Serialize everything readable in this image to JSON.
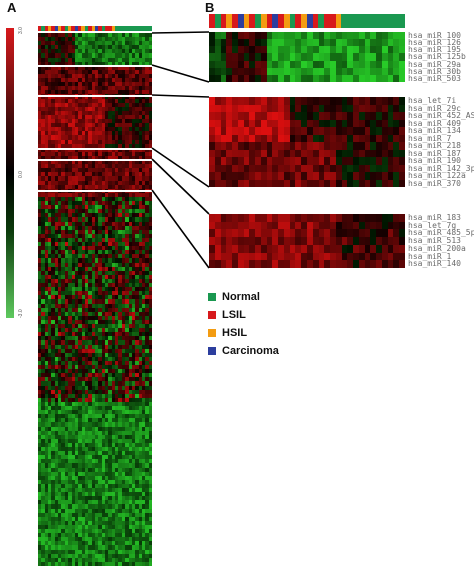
{
  "panels": {
    "a_label": "A",
    "b_label": "B"
  },
  "scale": {
    "top_label": "3.0",
    "mid_label": "0.0",
    "bottom_label": "-3.0"
  },
  "groups": {
    "group1": [
      "hsa_miR_100",
      "hsa_miR_126",
      "hsa_miR_195",
      "hsa_miR_125b",
      "hsa_miR_29a",
      "hsa_miR_30b",
      "hsa_miR_503"
    ],
    "group2": [
      "hsa_let_7i",
      "hsa_miR_29c",
      "hsa_miR_452_AS",
      "hsa_miR_409",
      "hsa_miR_134",
      "hsa_miR_7",
      "hsa_miR_218",
      "hsa_miR_187",
      "hsa_miR_190",
      "hsa_miR_142_3p",
      "hsa_miR_122a",
      "hsa_miR_370"
    ],
    "group3": [
      "hsa_miR_183",
      "hsa_let_7g",
      "hsa_miR_485_5p",
      "hsa_miR_513",
      "hsa_miR_200a",
      "hsa_miR_1",
      "hsa_miR_140"
    ]
  },
  "legend": [
    {
      "label": "Normal",
      "color": "#1a9850"
    },
    {
      "label": "LSIL",
      "color": "#d7191c"
    },
    {
      "label": "HSIL",
      "color": "#f39c12"
    },
    {
      "label": "Carcinoma",
      "color": "#2c3e9e"
    }
  ],
  "colors": {
    "high": "#d7191c",
    "low": "#5ec95e",
    "mid": "#000000"
  }
}
